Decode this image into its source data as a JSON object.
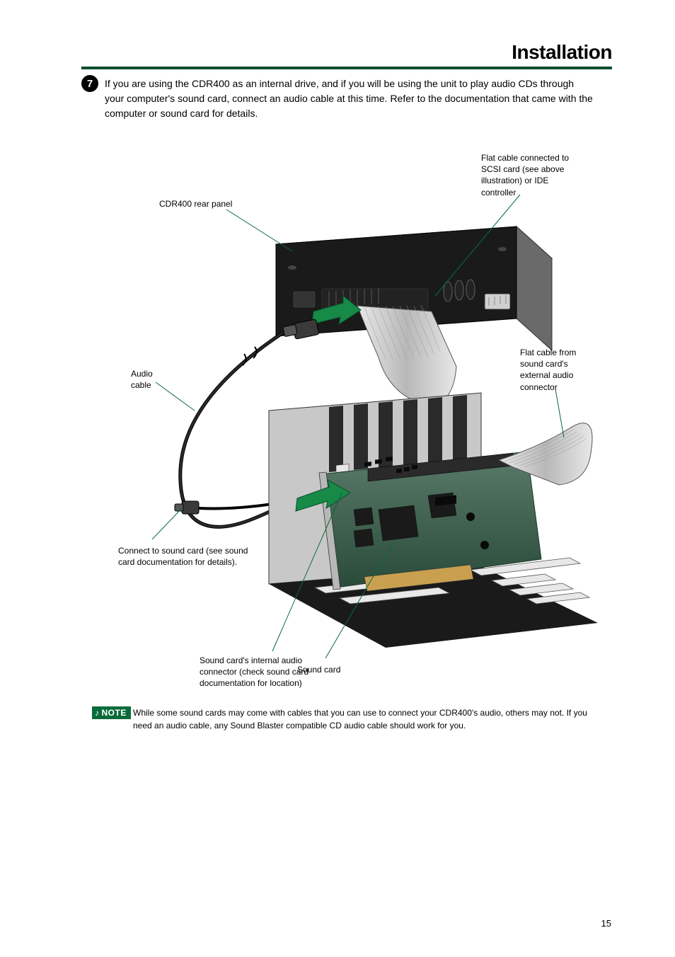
{
  "header": {
    "title": "Installation"
  },
  "step": {
    "number": "7",
    "text": "If you are using the CDR400 as an internal drive, and if you will be using the unit to play audio CDs through your computer's sound card, connect an audio cable at this time. Refer to the documentation that came with the computer or sound card for details."
  },
  "labels": {
    "drive_rear": "CDR400 rear panel",
    "flat_cable_top": "Flat cable connected to\nSCSI card (see above\nillustration) or IDE\ncontroller",
    "audio_cable": "Audio\ncable",
    "connect_sound": "Connect to sound card (see sound\ncard documentation for details).",
    "sound_card_conn": "Sound card's internal audio\nconnector (check sound card\ndocumentation for location)",
    "sound_card": "Sound card",
    "flat_cable_sound": "Flat cable from\nsound card's\nexternal audio\nconnector"
  },
  "note": {
    "badge": "NOTE",
    "text": "While some sound cards may come with cables that you can use to connect your CDR400's audio, others may not. If you need an audio cable, any Sound Blaster compatible CD audio cable should work for you."
  },
  "page_number": "15",
  "colors": {
    "rule": "#0a4d2e",
    "accent": "#0a6b3a",
    "arrow": "#168a46"
  }
}
